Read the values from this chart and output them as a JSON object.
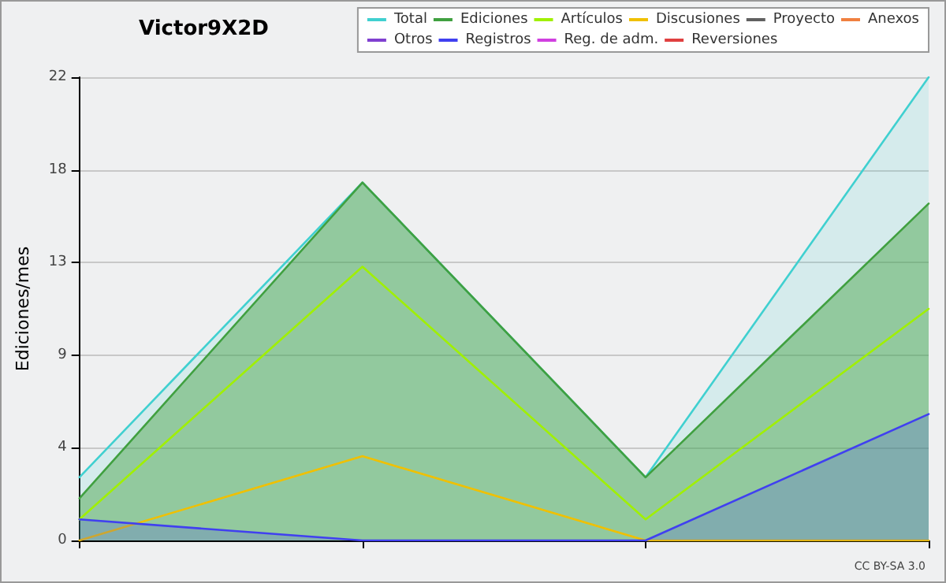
{
  "chart_data": {
    "type": "line",
    "title": "Victor9X2D",
    "ylabel": "Ediciones/mes",
    "annotations": [
      "CC BY-SA 3.0"
    ],
    "categories": [
      null,
      null,
      null,
      null
    ],
    "series": [
      {
        "name": "Total",
        "type": "area",
        "color": "#40d0d0",
        "values": [
          3,
          17,
          3,
          22
        ]
      },
      {
        "name": "Ediciones",
        "type": "area",
        "color": "#40a040",
        "values": [
          2,
          17,
          3,
          16
        ]
      },
      {
        "name": "Artículos",
        "type": "line",
        "color": "#a0f000",
        "values": [
          1,
          13,
          1,
          11
        ]
      },
      {
        "name": "Discusiones",
        "type": "line",
        "color": "#f0c000",
        "values": [
          0,
          4,
          0,
          0
        ]
      },
      {
        "name": "Proyecto",
        "type": "line",
        "color": "#606060",
        "values": [
          null,
          null,
          null,
          null
        ]
      },
      {
        "name": "Anexos",
        "type": "line",
        "color": "#f08040",
        "values": [
          null,
          null,
          null,
          null
        ]
      },
      {
        "name": "Otros",
        "type": "line",
        "color": "#8040d0",
        "values": [
          null,
          null,
          null,
          null
        ]
      },
      {
        "name": "Registros",
        "type": "area",
        "color": "#4040f0",
        "values": [
          1,
          0,
          0,
          6
        ]
      },
      {
        "name": "Reg. de adm.",
        "type": "line",
        "color": "#d040e0",
        "values": [
          null,
          null,
          null,
          null
        ]
      },
      {
        "name": "Reversiones",
        "type": "line",
        "color": "#e04040",
        "values": [
          null,
          null,
          null,
          null
        ]
      }
    ],
    "ylim": [
      0,
      22
    ],
    "yticks": [
      {
        "value": 0,
        "label": "0"
      },
      {
        "value": 4.4,
        "label": "4"
      },
      {
        "value": 8.8,
        "label": "9"
      },
      {
        "value": 13.2,
        "label": "13"
      },
      {
        "value": 17.6,
        "label": "18"
      },
      {
        "value": 22,
        "label": "22"
      }
    ],
    "grid": "y",
    "legend": "top right",
    "marker": "none",
    "line_style": "solid"
  }
}
